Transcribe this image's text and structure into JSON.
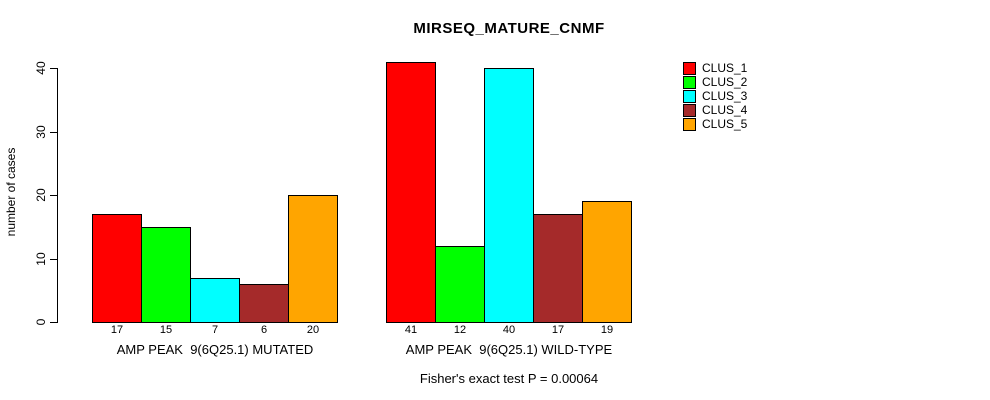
{
  "chart_data": {
    "type": "bar",
    "title": "MIRSEQ_MATURE_CNMF",
    "ylabel": "number of cases",
    "xlabel": "",
    "ylim": [
      0,
      40
    ],
    "yticks": [
      0,
      10,
      20,
      30,
      40
    ],
    "grid": false,
    "legend_position": "right",
    "categories": [
      "AMP PEAK  9(6Q25.1) MUTATED",
      "AMP PEAK  9(6Q25.1) WILD-TYPE"
    ],
    "series": [
      {
        "name": "CLUS_1",
        "color": "#FF0000",
        "values": [
          17,
          41
        ]
      },
      {
        "name": "CLUS_2",
        "color": "#00FF00",
        "values": [
          15,
          12
        ]
      },
      {
        "name": "CLUS_3",
        "color": "#00FFFF",
        "values": [
          7,
          40
        ]
      },
      {
        "name": "CLUS_4",
        "color": "#A52A2A",
        "values": [
          6,
          17
        ]
      },
      {
        "name": "CLUS_5",
        "color": "#FFA500",
        "values": [
          20,
          19
        ]
      }
    ],
    "bar_value_labels": {
      "group_1": [
        "17",
        "15",
        "7",
        "6",
        "20"
      ],
      "group_2": [
        "41",
        "12",
        "40",
        "17",
        "19"
      ]
    },
    "annotation": "Fisher's exact test P = 0.00064"
  },
  "legend": {
    "items": [
      {
        "label": "CLUS_1",
        "color": "#FF0000"
      },
      {
        "label": "CLUS_2",
        "color": "#00FF00"
      },
      {
        "label": "CLUS_3",
        "color": "#00FFFF"
      },
      {
        "label": "CLUS_4",
        "color": "#A52A2A"
      },
      {
        "label": "CLUS_5",
        "color": "#FFA500"
      }
    ]
  }
}
